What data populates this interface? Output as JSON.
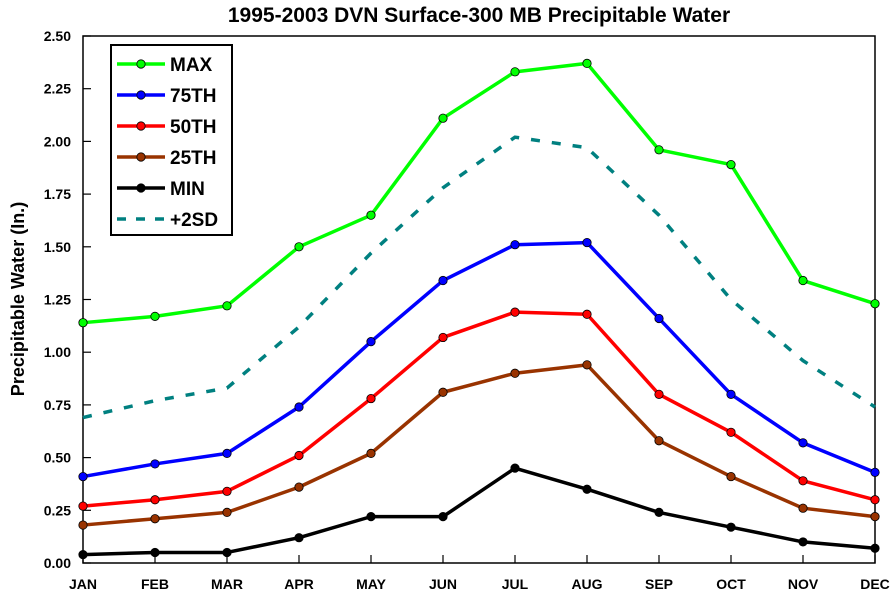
{
  "chart_data": {
    "type": "line",
    "title": "1995-2003 DVN Surface-300 MB Precipitable Water",
    "xlabel": "",
    "ylabel": "Precipitable Water (In.)",
    "categories": [
      "JAN",
      "FEB",
      "MAR",
      "APR",
      "MAY",
      "JUN",
      "JUL",
      "AUG",
      "SEP",
      "OCT",
      "NOV",
      "DEC"
    ],
    "ylim": [
      0,
      2.5
    ],
    "yticks": [
      "0.00",
      "0.25",
      "0.50",
      "0.75",
      "1.00",
      "1.25",
      "1.50",
      "1.75",
      "2.00",
      "2.25",
      "2.50"
    ],
    "grid": false,
    "legend_position": "top-left",
    "series": [
      {
        "name": "MAX",
        "color": "#00ff00",
        "style": "solid",
        "marker": "circle",
        "values": [
          1.14,
          1.17,
          1.22,
          1.5,
          1.65,
          2.11,
          2.33,
          2.37,
          1.96,
          1.89,
          1.34,
          1.23
        ]
      },
      {
        "name": "75TH",
        "color": "#0000ff",
        "style": "solid",
        "marker": "circle",
        "values": [
          0.41,
          0.47,
          0.52,
          0.74,
          1.05,
          1.34,
          1.51,
          1.52,
          1.16,
          0.8,
          0.57,
          0.43
        ]
      },
      {
        "name": "50TH",
        "color": "#ff0000",
        "style": "solid",
        "marker": "circle",
        "values": [
          0.27,
          0.3,
          0.34,
          0.51,
          0.78,
          1.07,
          1.19,
          1.18,
          0.8,
          0.62,
          0.39,
          0.3
        ]
      },
      {
        "name": "25TH",
        "color": "#993300",
        "style": "solid",
        "marker": "circle",
        "values": [
          0.18,
          0.21,
          0.24,
          0.36,
          0.52,
          0.81,
          0.9,
          0.94,
          0.58,
          0.41,
          0.26,
          0.22
        ]
      },
      {
        "name": "MIN",
        "color": "#000000",
        "style": "solid",
        "marker": "circle",
        "values": [
          0.04,
          0.05,
          0.05,
          0.12,
          0.22,
          0.22,
          0.45,
          0.35,
          0.24,
          0.17,
          0.1,
          0.07
        ]
      },
      {
        "name": "+2SD",
        "color": "#008080",
        "style": "dashed",
        "marker": "none",
        "values": [
          0.69,
          0.77,
          0.83,
          1.12,
          1.47,
          1.78,
          2.02,
          1.97,
          1.65,
          1.25,
          0.96,
          0.74
        ]
      }
    ]
  }
}
